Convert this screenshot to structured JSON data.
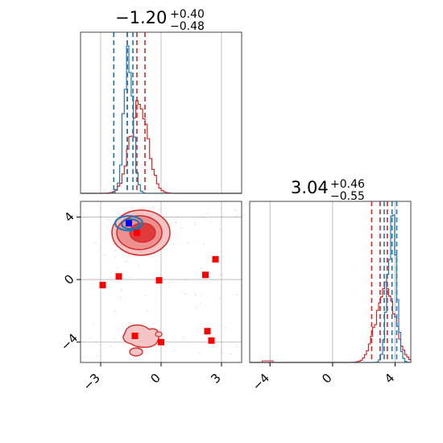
{
  "colors": {
    "red": "#d62728",
    "red_marker": "#ff0000",
    "blue": "#1f77b4",
    "blue_marker": "#0000ff",
    "grid": "#b0b0b0",
    "axis": "#444444"
  },
  "chart_data": [
    {
      "type": "histogram",
      "panel": "top-left",
      "title": {
        "main": "−1.20",
        "sup": "+0.40",
        "sub": "−0.48"
      },
      "x_range": [
        -4.0,
        4.0
      ],
      "grid": true,
      "x_gridlines": [
        -3,
        0,
        3
      ],
      "series": [
        {
          "color": "red",
          "peak_center": -1.1,
          "peak_width": 0.45,
          "quantile_lines": [
            -1.68,
            -1.2,
            -0.8
          ]
        },
        {
          "color": "blue",
          "peak_center": -1.62,
          "peak_width": 0.22,
          "quantile_lines": [
            -2.35,
            -1.68,
            -1.4
          ]
        }
      ]
    },
    {
      "type": "scatter-contour",
      "panel": "bottom-left",
      "x_range": [
        -4.0,
        4.0
      ],
      "y_range": [
        -5.3,
        5.0
      ],
      "x_ticks": [
        -3,
        0,
        3
      ],
      "x_tick_labels": [
        "−3",
        "0",
        "3"
      ],
      "y_ticks": [
        4,
        0,
        -4
      ],
      "y_tick_labels": [
        "4",
        "0",
        "−4"
      ],
      "grid": true,
      "red_points": [
        [
          -2.9,
          -0.35
        ],
        [
          -2.1,
          0.2
        ],
        [
          -0.1,
          -0.05
        ],
        [
          -1.2,
          3.0
        ],
        [
          2.2,
          0.3
        ],
        [
          2.7,
          1.3
        ],
        [
          2.3,
          -3.3
        ],
        [
          2.5,
          -3.9
        ],
        [
          -1.3,
          -3.6
        ],
        [
          0.0,
          -4.0
        ]
      ],
      "blue_points": [
        [
          -1.6,
          3.6
        ]
      ]
    },
    {
      "type": "histogram",
      "panel": "bottom-right",
      "title": {
        "main": "3.04",
        "sup": "+0.46",
        "sub": "−0.55"
      },
      "x_range": [
        -5.3,
        5.0
      ],
      "x_ticks": [
        -4,
        0,
        4
      ],
      "x_tick_labels": [
        "−4",
        "0",
        "4"
      ],
      "grid": true,
      "series": [
        {
          "color": "red",
          "peak_center": 3.4,
          "peak_width": 0.6,
          "quantile_lines": [
            2.5,
            3.04,
            3.5
          ]
        },
        {
          "color": "blue",
          "peak_center": 3.8,
          "peak_width": 0.28,
          "quantile_lines": [
            3.3,
            3.8,
            4.1
          ]
        }
      ]
    }
  ]
}
